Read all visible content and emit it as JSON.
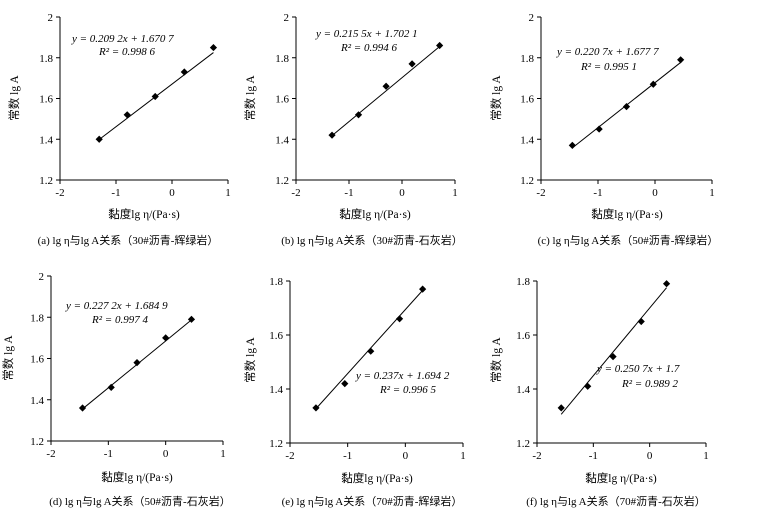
{
  "chart_data": [
    {
      "type": "scatter",
      "id": "a",
      "caption": "(a) lg η与lg A关系（30#沥青-辉绿岩）",
      "xlabel": "黏度lg η/(Pa·s)",
      "ylabel": "常数 lg A",
      "xlim": [
        -2,
        1
      ],
      "ylim": [
        1.2,
        2
      ],
      "xticks": [
        "-2",
        "-1",
        "0",
        "1"
      ],
      "yticks": [
        "1.2",
        "1.4",
        "1.6",
        "1.8",
        "2"
      ],
      "points": [
        [
          -1.3,
          1.4
        ],
        [
          -0.8,
          1.52
        ],
        [
          -0.3,
          1.61
        ],
        [
          0.22,
          1.73
        ],
        [
          0.74,
          1.85
        ]
      ],
      "fit": {
        "slope": 0.2092,
        "intercept": 1.6707,
        "x_range": [
          -1.3,
          0.74
        ]
      },
      "equation": "y = 0.209 2x + 1.670 7",
      "r2": "R² = 0.998 6"
    },
    {
      "type": "scatter",
      "id": "b",
      "caption": "(b) lg η与lg A关系（30#沥青-石灰岩）",
      "xlabel": "黏度lg η/(Pa·s)",
      "ylabel": "常数 lg A",
      "xlim": [
        -2,
        1
      ],
      "ylim": [
        1.2,
        2
      ],
      "xticks": [
        "-2",
        "-1",
        "0",
        "1"
      ],
      "yticks": [
        "1.2",
        "1.4",
        "1.6",
        "1.8",
        "2"
      ],
      "points": [
        [
          -1.32,
          1.42
        ],
        [
          -0.82,
          1.52
        ],
        [
          -0.3,
          1.66
        ],
        [
          0.19,
          1.77
        ],
        [
          0.71,
          1.86
        ]
      ],
      "fit": {
        "slope": 0.2155,
        "intercept": 1.7021,
        "x_range": [
          -1.32,
          0.71
        ]
      },
      "equation": "y = 0.215 5x + 1.702 1",
      "r2": "R² = 0.994 6"
    },
    {
      "type": "scatter",
      "id": "c",
      "caption": "(c) lg η与lg A关系（50#沥青-辉绿岩）",
      "xlabel": "黏度lg η/(Pa·s)",
      "ylabel": "常数 lg A",
      "xlim": [
        -2,
        1
      ],
      "ylim": [
        1.2,
        2
      ],
      "xticks": [
        "-2",
        "-1",
        "0",
        "1"
      ],
      "yticks": [
        "1.2",
        "1.4",
        "1.6",
        "1.8",
        "2"
      ],
      "points": [
        [
          -1.45,
          1.37
        ],
        [
          -0.98,
          1.45
        ],
        [
          -0.5,
          1.56
        ],
        [
          -0.03,
          1.67
        ],
        [
          0.45,
          1.79
        ]
      ],
      "fit": {
        "slope": 0.2207,
        "intercept": 1.6777,
        "x_range": [
          -1.45,
          0.45
        ]
      },
      "equation": "y = 0.220 7x + 1.677 7",
      "r2": "R² = 0.995 1"
    },
    {
      "type": "scatter",
      "id": "d",
      "caption": "(d) lg η与lg A关系（50#沥青-石灰岩）",
      "xlabel": "黏度lg η/(Pa·s)",
      "ylabel": "常数 lg A",
      "xlim": [
        -2,
        1
      ],
      "ylim": [
        1.2,
        2
      ],
      "xticks": [
        "-2",
        "-1",
        "0",
        "1"
      ],
      "yticks": [
        "1.2",
        "1.4",
        "1.6",
        "1.8",
        "2"
      ],
      "points": [
        [
          -1.45,
          1.36
        ],
        [
          -0.95,
          1.46
        ],
        [
          -0.5,
          1.58
        ],
        [
          0.0,
          1.7
        ],
        [
          0.45,
          1.79
        ]
      ],
      "fit": {
        "slope": 0.2272,
        "intercept": 1.6849,
        "x_range": [
          -1.45,
          0.45
        ]
      },
      "equation": "y = 0.227 2x + 1.684 9",
      "r2": "R² = 0.997 4"
    },
    {
      "type": "scatter",
      "id": "e",
      "caption": "(e) lg η与lg A关系（70#沥青-辉绿岩）",
      "xlabel": "黏度lg η/(Pa·s)",
      "ylabel": "常数 lg A",
      "xlim": [
        -2,
        1
      ],
      "ylim": [
        1.2,
        1.8
      ],
      "xticks": [
        "-2",
        "-1",
        "0",
        "1"
      ],
      "yticks": [
        "1.2",
        "1.4",
        "1.6",
        "1.8"
      ],
      "points": [
        [
          -1.55,
          1.33
        ],
        [
          -1.05,
          1.42
        ],
        [
          -0.6,
          1.54
        ],
        [
          -0.1,
          1.66
        ],
        [
          0.3,
          1.77
        ]
      ],
      "fit": {
        "slope": 0.237,
        "intercept": 1.6942,
        "x_range": [
          -1.55,
          0.3
        ]
      },
      "equation": "y = 0.237x + 1.694 2",
      "r2": "R² = 0.996 5"
    },
    {
      "type": "scatter",
      "id": "f",
      "caption": "(f) lg η与lg A关系（70#沥青-石灰岩）",
      "xlabel": "黏度lg η/(Pa·s)",
      "ylabel": "常数 lg A",
      "xlim": [
        -2,
        1
      ],
      "ylim": [
        1.2,
        1.8
      ],
      "xticks": [
        "-2",
        "-1",
        "0",
        "1"
      ],
      "yticks": [
        "1.2",
        "1.4",
        "1.6",
        "1.8"
      ],
      "points": [
        [
          -1.57,
          1.33
        ],
        [
          -1.1,
          1.41
        ],
        [
          -0.65,
          1.52
        ],
        [
          -0.15,
          1.65
        ],
        [
          0.3,
          1.79
        ]
      ],
      "fit": {
        "slope": 0.2507,
        "intercept": 1.7,
        "x_range": [
          -1.57,
          0.3
        ]
      },
      "equation": "y = 0.250 7x + 1.7",
      "r2": "R² = 0.989 2"
    }
  ]
}
